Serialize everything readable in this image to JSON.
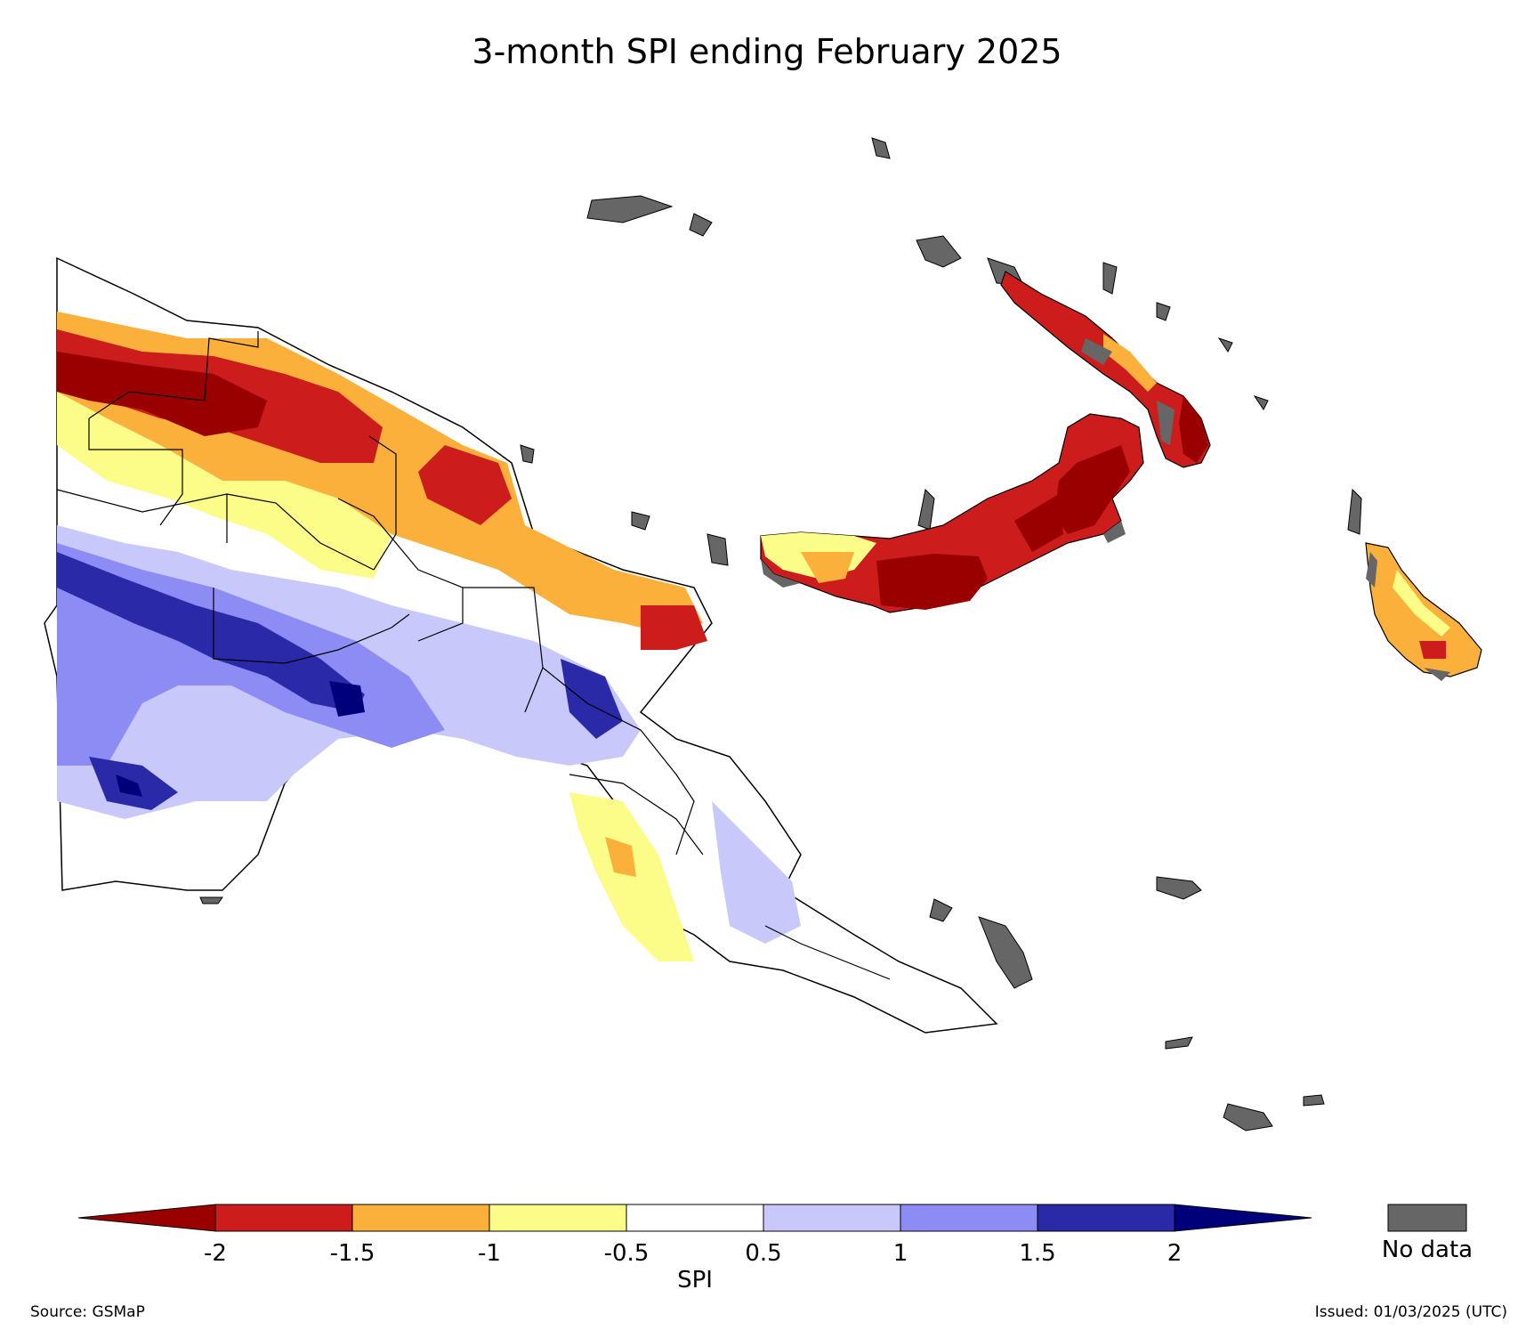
{
  "title": "3-month SPI ending February 2025",
  "colorbar": {
    "label": "SPI",
    "ticks": [
      "-2",
      "-1.5",
      "-1",
      "-0.5",
      "0.5",
      "1",
      "1.5",
      "2"
    ],
    "colors": {
      "below_-2": "#990000",
      "-2_to_-1.5": "#cc1c1c",
      "-1.5_to_-1": "#fbb03b",
      "-1_to_-0.5": "#fcfc88",
      "-0.5_to_0.5": "#ffffff",
      "0.5_to_1": "#c8c8fa",
      "1_to_1.5": "#8c8cf4",
      "1.5_to_2": "#2a2aa8",
      "above_2": "#00007a"
    }
  },
  "no_data": {
    "label": "No data",
    "color": "#666666"
  },
  "source": "Source: GSMaP",
  "issued": "Issued: 01/03/2025 (UTC)"
}
